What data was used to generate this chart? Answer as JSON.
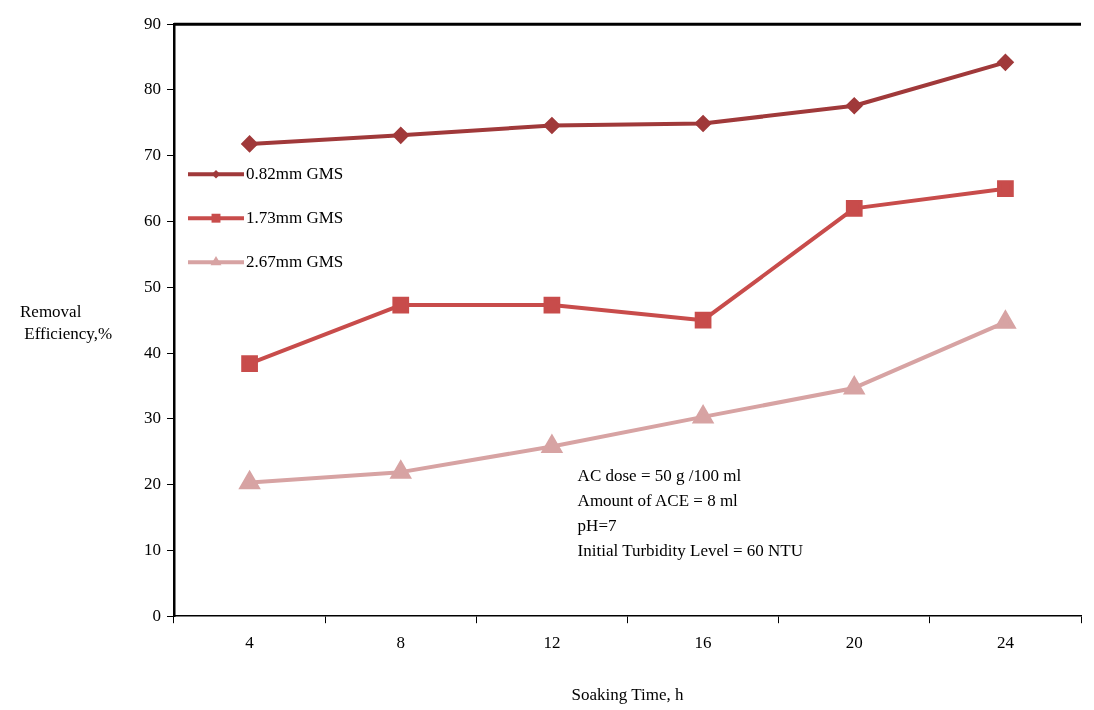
{
  "chart_data": {
    "type": "line",
    "xlabel": "Soaking Time, h",
    "ylabel": "Removal Efficiency,%",
    "categories": [
      "4",
      "8",
      "12",
      "16",
      "20",
      "24"
    ],
    "series": [
      {
        "name": "0.82mm GMS",
        "color": "#a0393a",
        "marker": "diamond",
        "values": [
          71.8,
          73.1,
          74.6,
          74.9,
          77.6,
          84.2
        ]
      },
      {
        "name": "1.73mm GMS",
        "color": "#c84c4b",
        "marker": "square",
        "values": [
          38.4,
          47.3,
          47.3,
          45.0,
          62.0,
          65.0
        ]
      },
      {
        "name": "2.67mm GMS",
        "color": "#d7a3a3",
        "marker": "triangle",
        "values": [
          20.3,
          21.9,
          25.8,
          30.3,
          34.7,
          44.7
        ]
      }
    ],
    "ylim": [
      0,
      90
    ],
    "yticks": [
      0,
      10,
      20,
      30,
      40,
      50,
      60,
      70,
      80,
      90
    ],
    "grid": false,
    "legend": "left",
    "annotations": [
      "AC dose = 50 g /100 ml",
      "Amount of ACE = 8 ml",
      "pH=7",
      "Initial Turbidity Level = 60 NTU"
    ]
  }
}
